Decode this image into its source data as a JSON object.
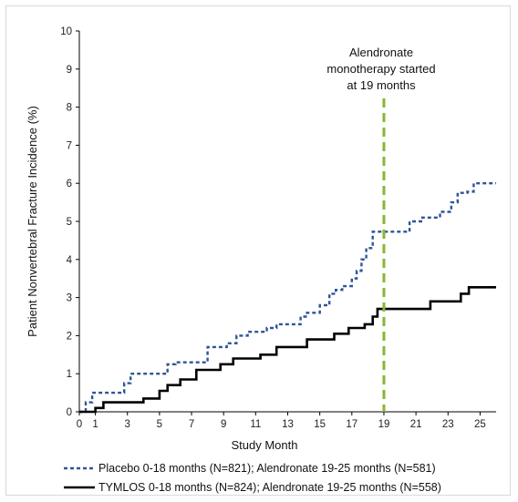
{
  "chart_data": {
    "type": "line",
    "title": "",
    "xlabel": "Study Month",
    "ylabel": "Patient Nonvertebral  Fracture Incidence (%)",
    "xlim": [
      0,
      26
    ],
    "ylim": [
      0,
      10
    ],
    "x_ticks": [
      0,
      1,
      3,
      5,
      7,
      9,
      11,
      13,
      15,
      17,
      19,
      21,
      23,
      25
    ],
    "y_ticks": [
      0,
      1,
      2,
      3,
      4,
      5,
      6,
      7,
      8,
      9,
      10
    ],
    "grid": false,
    "legend_position": "bottom",
    "series": [
      {
        "name": "Placebo 0-18 months (N=821); Alendronate 19-25 months (N=581)",
        "style": "dashed",
        "color": "#2f5597",
        "step": true,
        "points": [
          [
            0,
            0
          ],
          [
            0.4,
            0.25
          ],
          [
            0.8,
            0.5
          ],
          [
            2.8,
            0.75
          ],
          [
            3.2,
            1.0
          ],
          [
            5.5,
            1.25
          ],
          [
            6.0,
            1.3
          ],
          [
            8.0,
            1.7
          ],
          [
            9.2,
            1.8
          ],
          [
            9.8,
            2.0
          ],
          [
            10.5,
            2.1
          ],
          [
            11.7,
            2.2
          ],
          [
            12.3,
            2.3
          ],
          [
            13.8,
            2.5
          ],
          [
            14.2,
            2.6
          ],
          [
            15.0,
            2.8
          ],
          [
            15.6,
            3.1
          ],
          [
            16.0,
            3.2
          ],
          [
            16.4,
            3.3
          ],
          [
            17.0,
            3.5
          ],
          [
            17.3,
            3.7
          ],
          [
            17.6,
            4.0
          ],
          [
            17.9,
            4.3
          ],
          [
            18.3,
            4.73
          ],
          [
            20.6,
            5.0
          ],
          [
            21.4,
            5.1
          ],
          [
            22.5,
            5.25
          ],
          [
            23.2,
            5.5
          ],
          [
            23.6,
            5.75
          ],
          [
            24.2,
            5.78
          ],
          [
            24.6,
            6.0
          ],
          [
            26.0,
            6.0
          ]
        ]
      },
      {
        "name": "TYMLOS 0-18 months (N=824); Alendronate 19-25 months (N=558)",
        "style": "solid",
        "color": "#000000",
        "step": true,
        "points": [
          [
            0,
            0
          ],
          [
            1.0,
            0.1
          ],
          [
            1.5,
            0.25
          ],
          [
            4.0,
            0.35
          ],
          [
            5.0,
            0.55
          ],
          [
            5.5,
            0.7
          ],
          [
            6.3,
            0.85
          ],
          [
            7.3,
            1.1
          ],
          [
            8.8,
            1.25
          ],
          [
            9.6,
            1.4
          ],
          [
            11.3,
            1.5
          ],
          [
            12.3,
            1.7
          ],
          [
            14.2,
            1.9
          ],
          [
            15.9,
            2.05
          ],
          [
            16.8,
            2.2
          ],
          [
            17.8,
            2.3
          ],
          [
            18.3,
            2.5
          ],
          [
            18.6,
            2.7
          ],
          [
            21.9,
            2.9
          ],
          [
            23.8,
            3.1
          ],
          [
            24.3,
            3.27
          ],
          [
            26.0,
            3.27
          ]
        ]
      }
    ],
    "annotations": [
      {
        "x": 19,
        "line_style": "dashed",
        "color": "#8ab62f",
        "text": [
          "Alendronate",
          "monotherapy started",
          "at 19 months"
        ]
      }
    ]
  }
}
